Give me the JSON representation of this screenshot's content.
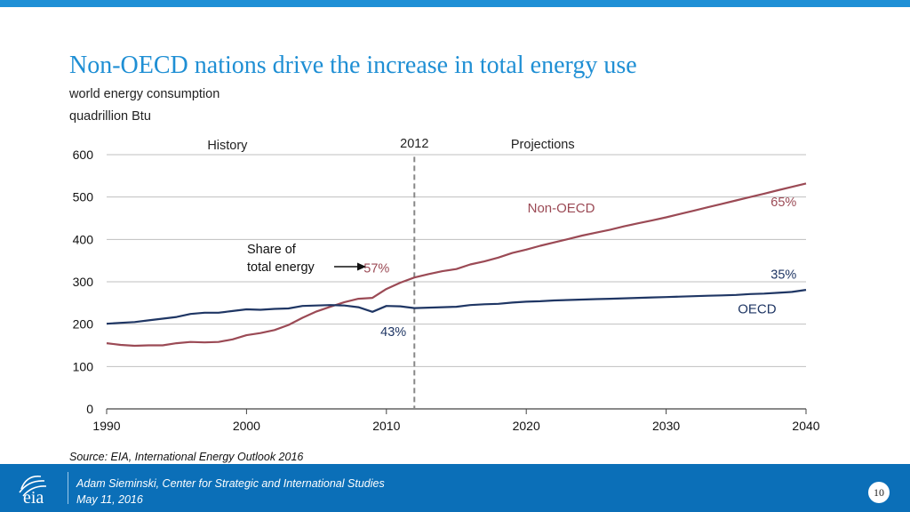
{
  "slide": {
    "title": "Non-OECD nations drive the increase in total energy use",
    "subtitle": "world energy consumption",
    "units": "quadrillion Btu",
    "source": "Source:  EIA, International Energy Outlook 2016",
    "footer_line1": "Adam Sieminski, Center for Strategic and International Studies",
    "footer_line2": "May 11, 2016",
    "page_number": "10",
    "logo_text": "eia",
    "colors": {
      "title": "#1f8fd4",
      "top_bar": "#1f90d6",
      "footer": "#0b6fb8",
      "non_oecd": "#9b4a55",
      "oecd": "#1f3664",
      "grid": "#bfbfbf"
    }
  },
  "chart_data": {
    "type": "line",
    "title": "",
    "xlabel": "",
    "ylabel": "quadrillion Btu",
    "xlim": [
      1990,
      2040
    ],
    "ylim": [
      0,
      600
    ],
    "x_ticks": [
      1990,
      2000,
      2010,
      2020,
      2030,
      2040
    ],
    "y_ticks": [
      0,
      100,
      200,
      300,
      400,
      500,
      600
    ],
    "grid": true,
    "divider_year": 2012,
    "region_labels": {
      "history": "History",
      "divider": "2012",
      "projections": "Projections"
    },
    "share_label": "Share of\ntotal energy",
    "series": [
      {
        "name": "Non-OECD",
        "label_x": 2022.5,
        "label_y": 474,
        "x": [
          1990,
          1991,
          1992,
          1993,
          1994,
          1995,
          1996,
          1997,
          1998,
          1999,
          2000,
          2001,
          2002,
          2003,
          2004,
          2005,
          2006,
          2007,
          2008,
          2009,
          2010,
          2011,
          2012,
          2013,
          2014,
          2015,
          2016,
          2017,
          2018,
          2019,
          2020,
          2021,
          2022,
          2023,
          2024,
          2025,
          2026,
          2027,
          2028,
          2029,
          2030,
          2031,
          2032,
          2033,
          2034,
          2035,
          2036,
          2037,
          2038,
          2039,
          2040
        ],
        "values": [
          155,
          151,
          149,
          150,
          150,
          155,
          158,
          157,
          158,
          164,
          174,
          179,
          186,
          198,
          215,
          230,
          241,
          252,
          260,
          262,
          283,
          298,
          310,
          318,
          325,
          330,
          341,
          348,
          357,
          368,
          376,
          385,
          393,
          401,
          409,
          416,
          423,
          431,
          438,
          445,
          452,
          460,
          468,
          476,
          484,
          492,
          500,
          508,
          516,
          524,
          532
        ]
      },
      {
        "name": "OECD",
        "label_x": 2036.5,
        "label_y": 236,
        "x": [
          1990,
          1991,
          1992,
          1993,
          1994,
          1995,
          1996,
          1997,
          1998,
          1999,
          2000,
          2001,
          2002,
          2003,
          2004,
          2005,
          2006,
          2007,
          2008,
          2009,
          2010,
          2011,
          2012,
          2013,
          2014,
          2015,
          2016,
          2017,
          2018,
          2019,
          2020,
          2021,
          2022,
          2023,
          2024,
          2025,
          2026,
          2027,
          2028,
          2029,
          2030,
          2031,
          2032,
          2033,
          2034,
          2035,
          2036,
          2037,
          2038,
          2039,
          2040
        ],
        "values": [
          201,
          203,
          205,
          209,
          213,
          217,
          224,
          227,
          227,
          231,
          235,
          234,
          236,
          237,
          243,
          244,
          245,
          244,
          240,
          229,
          243,
          242,
          238,
          239,
          240,
          241,
          245,
          247,
          248,
          251,
          253,
          254,
          256,
          257,
          258,
          259,
          260,
          261,
          262,
          263,
          264,
          265,
          266,
          267,
          268,
          269,
          271,
          272,
          274,
          276,
          281
        ]
      }
    ],
    "annotations": [
      {
        "text": "57%",
        "x": 2009.3,
        "y": 333,
        "series": "Non-OECD"
      },
      {
        "text": "43%",
        "x": 2010.5,
        "y": 183,
        "series": "OECD"
      },
      {
        "text": "65%",
        "x": 2038.4,
        "y": 489,
        "series": "Non-OECD"
      },
      {
        "text": "35%",
        "x": 2038.4,
        "y": 318,
        "series": "OECD"
      }
    ]
  }
}
